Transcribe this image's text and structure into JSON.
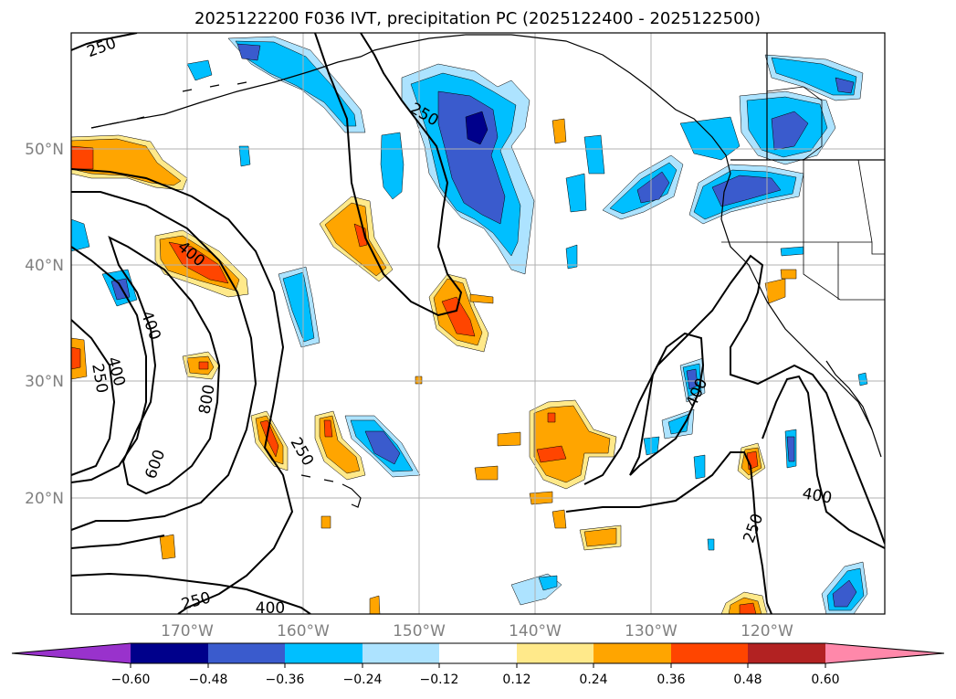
{
  "title": "2025122200 F036 IVT, precipitation PC (2025122400 - 2025122500)",
  "map": {
    "latitude_labels": [
      "50°N",
      "40°N",
      "30°N",
      "20°N"
    ],
    "longitude_labels": [
      "170°W",
      "160°W",
      "150°W",
      "140°W",
      "130°W",
      "120°W"
    ],
    "ivt_contour_labels": [
      "250",
      "250",
      "400",
      "400",
      "400",
      "250",
      "800",
      "600",
      "250",
      "250",
      "400",
      "400",
      "250",
      "400"
    ]
  },
  "colorbar": {
    "tick_labels": [
      "−0.60",
      "−0.48",
      "−0.36",
      "−0.24",
      "−0.12",
      "0.12",
      "0.24",
      "0.36",
      "0.48",
      "0.60"
    ],
    "colors": [
      "#9932cc",
      "#00008b",
      "#3a5bcd",
      "#00bfff",
      "#ade3ff",
      "#ffffff",
      "#ffe98a",
      "#ffa500",
      "#ff4500",
      "#b22222",
      "#ff88aa"
    ]
  },
  "colors": {
    "neg_light": "#ade3ff",
    "neg_mid": "#00bfff",
    "neg_strong": "#3a5bcd",
    "neg_max": "#00008b",
    "pos_light": "#ffe98a",
    "pos_mid": "#ffa500",
    "pos_strong": "#ff4500",
    "grid": "#b0b0b0",
    "contour": "#000000"
  }
}
